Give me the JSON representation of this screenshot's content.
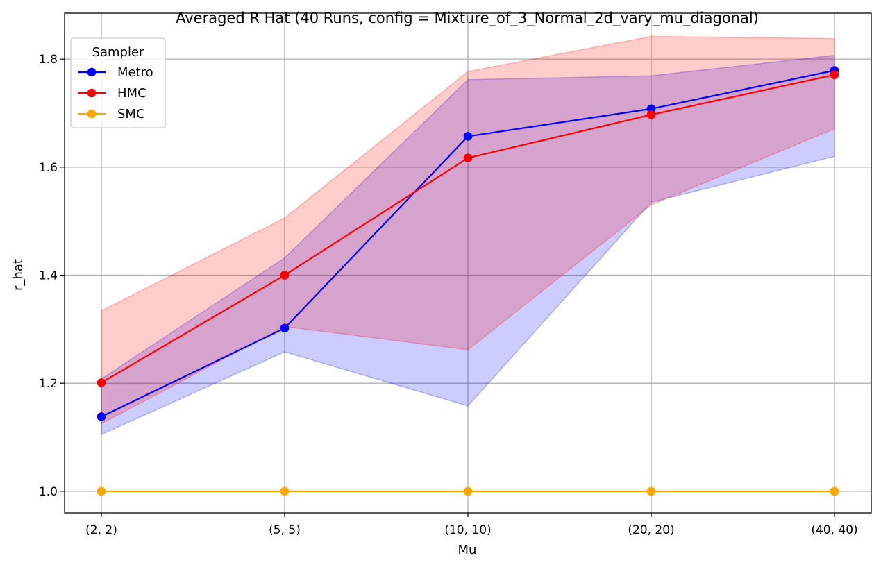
{
  "chart_data": {
    "type": "line",
    "title": "Averaged R Hat (40 Runs, config = Mixture_of_3_Normal_2d_vary_mu_diagonal)",
    "xlabel": "Mu",
    "ylabel": "r_hat",
    "categories": [
      "(2, 2)",
      "(5, 5)",
      "(10, 10)",
      "(20, 20)",
      "(40, 40)"
    ],
    "ylim": [
      0.96,
      1.885
    ],
    "yticks": [
      1.0,
      1.2,
      1.4,
      1.6,
      1.8
    ],
    "ytick_labels": [
      "1.0",
      "1.2",
      "1.4",
      "1.6",
      "1.8"
    ],
    "grid": true,
    "legend": {
      "title": "Sampler",
      "placement": "top-left"
    },
    "series": [
      {
        "name": "Metro",
        "color": "#0000ff",
        "band_color": "#0000ff",
        "values": [
          1.138,
          1.302,
          1.657,
          1.708,
          1.779
        ],
        "lower": [
          1.105,
          1.258,
          1.158,
          1.535,
          1.62
        ],
        "upper": [
          1.208,
          1.432,
          1.762,
          1.769,
          1.807
        ]
      },
      {
        "name": "HMC",
        "color": "#ff0000",
        "band_color": "#ff0000",
        "values": [
          1.201,
          1.4,
          1.617,
          1.697,
          1.771
        ],
        "lower": [
          1.125,
          1.305,
          1.262,
          1.53,
          1.671
        ],
        "upper": [
          1.334,
          1.506,
          1.777,
          1.842,
          1.838
        ]
      },
      {
        "name": "SMC",
        "color": "#ffa500",
        "band_color": "#ffa500",
        "values": [
          1.0,
          1.0,
          1.0,
          1.0,
          1.0
        ],
        "lower": [
          1.0,
          1.0,
          1.0,
          1.0,
          1.0
        ],
        "upper": [
          1.0,
          1.0,
          1.0,
          1.0,
          1.0
        ]
      }
    ]
  }
}
